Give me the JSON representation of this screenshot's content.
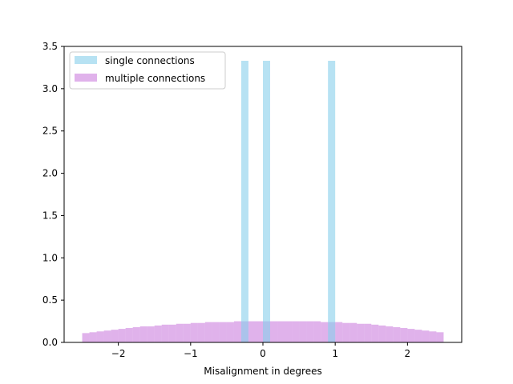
{
  "chart_data": {
    "type": "bar",
    "xlabel": "Misalignment in degrees",
    "ylabel": "",
    "xlim": [
      -2.75,
      2.75
    ],
    "ylim": [
      0,
      3.5
    ],
    "xticks": [
      -2,
      -1,
      0,
      1,
      2
    ],
    "xtick_labels": [
      "−2",
      "−1",
      "0",
      "1",
      "2"
    ],
    "yticks": [
      0.0,
      0.5,
      1.0,
      1.5,
      2.0,
      2.5,
      3.0,
      3.5
    ],
    "ytick_labels": [
      "0.0",
      "0.5",
      "1.0",
      "1.5",
      "2.0",
      "2.5",
      "3.0",
      "3.5"
    ],
    "grid": false,
    "legend_position": "top-left",
    "series": [
      {
        "name": "single connections",
        "color": "#87ceeb",
        "alpha": 0.6,
        "bin_width": 0.1,
        "bins": [
          {
            "x0": -0.3,
            "x1": -0.2,
            "value": 3.33
          },
          {
            "x0": 0.0,
            "x1": 0.1,
            "value": 3.33
          },
          {
            "x0": 0.9,
            "x1": 1.0,
            "value": 3.33
          }
        ]
      },
      {
        "name": "multiple connections",
        "color": "#ba55d3",
        "alpha": 0.45,
        "bin_width": 0.1,
        "bins": [
          {
            "x0": -2.5,
            "x1": -2.4,
            "value": 0.11
          },
          {
            "x0": -2.4,
            "x1": -2.3,
            "value": 0.12
          },
          {
            "x0": -2.3,
            "x1": -2.2,
            "value": 0.13
          },
          {
            "x0": -2.2,
            "x1": -2.1,
            "value": 0.14
          },
          {
            "x0": -2.1,
            "x1": -2.0,
            "value": 0.15
          },
          {
            "x0": -2.0,
            "x1": -1.9,
            "value": 0.16
          },
          {
            "x0": -1.9,
            "x1": -1.8,
            "value": 0.17
          },
          {
            "x0": -1.8,
            "x1": -1.7,
            "value": 0.18
          },
          {
            "x0": -1.7,
            "x1": -1.6,
            "value": 0.19
          },
          {
            "x0": -1.6,
            "x1": -1.5,
            "value": 0.19
          },
          {
            "x0": -1.5,
            "x1": -1.4,
            "value": 0.2
          },
          {
            "x0": -1.4,
            "x1": -1.3,
            "value": 0.21
          },
          {
            "x0": -1.3,
            "x1": -1.2,
            "value": 0.21
          },
          {
            "x0": -1.2,
            "x1": -1.1,
            "value": 0.22
          },
          {
            "x0": -1.1,
            "x1": -1.0,
            "value": 0.22
          },
          {
            "x0": -1.0,
            "x1": -0.9,
            "value": 0.23
          },
          {
            "x0": -0.9,
            "x1": -0.8,
            "value": 0.23
          },
          {
            "x0": -0.8,
            "x1": -0.7,
            "value": 0.24
          },
          {
            "x0": -0.7,
            "x1": -0.6,
            "value": 0.24
          },
          {
            "x0": -0.6,
            "x1": -0.5,
            "value": 0.24
          },
          {
            "x0": -0.5,
            "x1": -0.4,
            "value": 0.24
          },
          {
            "x0": -0.4,
            "x1": -0.3,
            "value": 0.25
          },
          {
            "x0": -0.3,
            "x1": -0.2,
            "value": 0.25
          },
          {
            "x0": -0.2,
            "x1": -0.1,
            "value": 0.25
          },
          {
            "x0": -0.1,
            "x1": 0.0,
            "value": 0.25
          },
          {
            "x0": 0.0,
            "x1": 0.1,
            "value": 0.25
          },
          {
            "x0": 0.1,
            "x1": 0.2,
            "value": 0.25
          },
          {
            "x0": 0.2,
            "x1": 0.3,
            "value": 0.25
          },
          {
            "x0": 0.3,
            "x1": 0.4,
            "value": 0.25
          },
          {
            "x0": 0.4,
            "x1": 0.5,
            "value": 0.25
          },
          {
            "x0": 0.5,
            "x1": 0.6,
            "value": 0.25
          },
          {
            "x0": 0.6,
            "x1": 0.7,
            "value": 0.25
          },
          {
            "x0": 0.7,
            "x1": 0.8,
            "value": 0.25
          },
          {
            "x0": 0.8,
            "x1": 0.9,
            "value": 0.24
          },
          {
            "x0": 0.9,
            "x1": 1.0,
            "value": 0.24
          },
          {
            "x0": 1.0,
            "x1": 1.1,
            "value": 0.24
          },
          {
            "x0": 1.1,
            "x1": 1.2,
            "value": 0.23
          },
          {
            "x0": 1.2,
            "x1": 1.3,
            "value": 0.23
          },
          {
            "x0": 1.3,
            "x1": 1.4,
            "value": 0.22
          },
          {
            "x0": 1.4,
            "x1": 1.5,
            "value": 0.22
          },
          {
            "x0": 1.5,
            "x1": 1.6,
            "value": 0.21
          },
          {
            "x0": 1.6,
            "x1": 1.7,
            "value": 0.2
          },
          {
            "x0": 1.7,
            "x1": 1.8,
            "value": 0.19
          },
          {
            "x0": 1.8,
            "x1": 1.9,
            "value": 0.18
          },
          {
            "x0": 1.9,
            "x1": 2.0,
            "value": 0.17
          },
          {
            "x0": 2.0,
            "x1": 2.1,
            "value": 0.16
          },
          {
            "x0": 2.1,
            "x1": 2.2,
            "value": 0.15
          },
          {
            "x0": 2.2,
            "x1": 2.3,
            "value": 0.14
          },
          {
            "x0": 2.3,
            "x1": 2.4,
            "value": 0.13
          },
          {
            "x0": 2.4,
            "x1": 2.5,
            "value": 0.12
          }
        ]
      }
    ]
  }
}
